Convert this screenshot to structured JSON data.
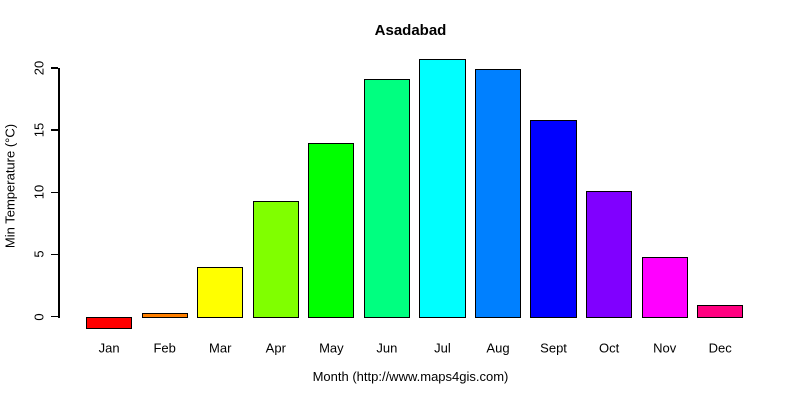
{
  "chart_data": {
    "type": "bar",
    "title": "Asadabad",
    "xlabel": "Month (http://www.maps4gis.com)",
    "ylabel": "Min Temperature (°C)",
    "categories": [
      "Jan",
      "Feb",
      "Mar",
      "Apr",
      "May",
      "Jun",
      "Jul",
      "Aug",
      "Sept",
      "Oct",
      "Nov",
      "Dec"
    ],
    "values": [
      -0.9,
      0.3,
      4.0,
      9.3,
      14.0,
      19.1,
      20.7,
      19.9,
      15.8,
      10.1,
      4.8,
      0.9
    ],
    "bar_colors": [
      "#FF0000",
      "#FF8000",
      "#FFFF00",
      "#80FF00",
      "#00FF00",
      "#00FF80",
      "#00FFFF",
      "#0080FF",
      "#0000FF",
      "#8000FF",
      "#FF00FF",
      "#FF0080"
    ],
    "bar_border_color": "#000000",
    "yticks": [
      "0",
      "5",
      "10",
      "15",
      "20"
    ],
    "ylim": [
      -1.8,
      21.5
    ],
    "grid": false,
    "legend": "none",
    "background_color": "#FFFFFF",
    "text_color": "#000000"
  }
}
